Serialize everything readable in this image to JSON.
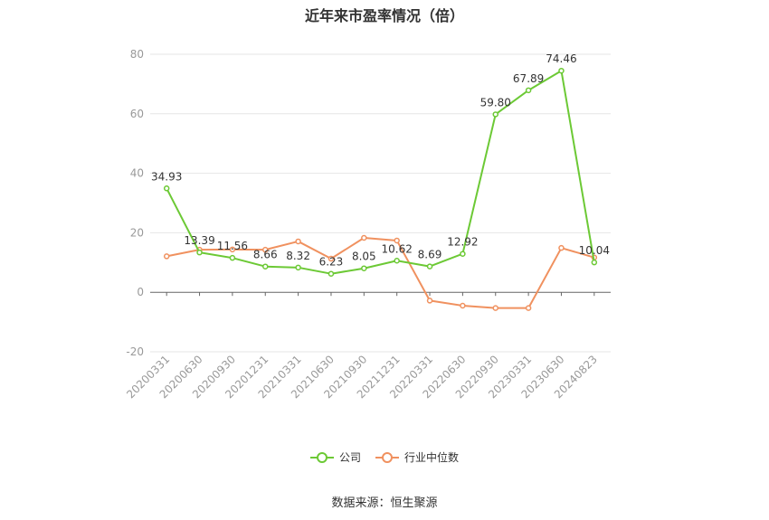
{
  "chart_data": {
    "type": "line",
    "title": "近年来市盈率情况（倍）",
    "categories": [
      "20200331",
      "20200630",
      "20200930",
      "20201231",
      "20210331",
      "20210630",
      "20210930",
      "20211231",
      "20220331",
      "20220630",
      "20220930",
      "20230331",
      "20230630",
      "20240823"
    ],
    "ylim": [
      -20,
      80
    ],
    "yticks": [
      -20,
      0,
      20,
      40,
      60,
      80
    ],
    "grid": true,
    "legend_position": "bottom",
    "series": [
      {
        "name": "公司",
        "color": "#6cc935",
        "values": [
          34.93,
          13.39,
          11.56,
          8.66,
          8.32,
          6.23,
          8.05,
          10.62,
          8.69,
          12.92,
          59.8,
          67.89,
          74.46,
          10.04
        ],
        "labels": [
          "34.93",
          "13.39",
          "11.56",
          "8.66",
          "8.32",
          "6.23",
          "8.05",
          "10.62",
          "8.69",
          "12.92",
          "59.80",
          "67.89",
          "74.46",
          "10.04"
        ]
      },
      {
        "name": "行业中位数",
        "color": "#f0915f",
        "values": [
          12.1,
          14.3,
          14.4,
          14.3,
          17.1,
          11.3,
          18.3,
          17.4,
          -2.8,
          -4.5,
          -5.3,
          -5.3,
          14.9,
          11.7
        ]
      }
    ]
  },
  "source": "数据来源：恒生聚源"
}
